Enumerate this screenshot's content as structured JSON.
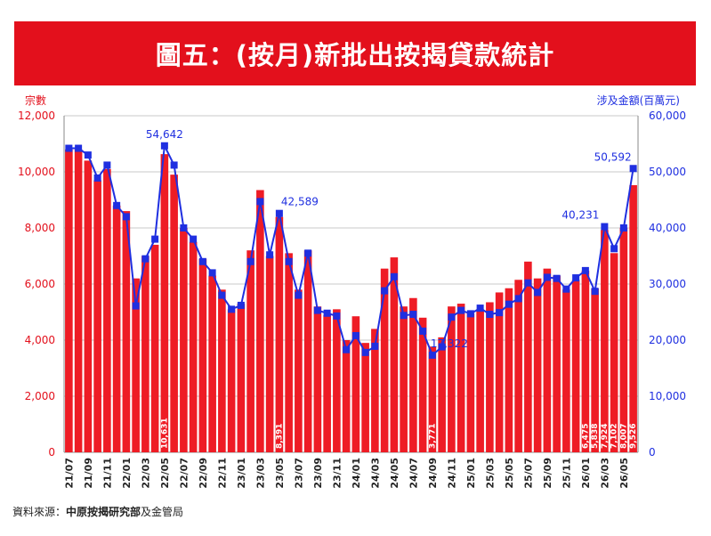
{
  "header": {
    "title": "圖五：(按月)新批出按揭貸款統計"
  },
  "source": {
    "prefix": "資料來源：",
    "org": "中原按揭研究部",
    "suffix": "及金管局"
  },
  "colors": {
    "banner": "#e3101c",
    "bar": "#ee1c25",
    "line": "#1f2fe0",
    "left_axis": "#e3101c",
    "right_axis": "#1f2fe0"
  },
  "chart_data": {
    "type": "bar",
    "left_axis_label": "宗數",
    "right_axis_label": "涉及金額(百萬元)",
    "left_ylim": [
      0,
      12000
    ],
    "right_ylim": [
      0,
      60000
    ],
    "left_ticks": [
      "0",
      "2,000",
      "4,000",
      "6,000",
      "8,000",
      "10,000",
      "12,000"
    ],
    "right_ticks": [
      "0",
      "10,000",
      "20,000",
      "30,000",
      "40,000",
      "50,000",
      "60,000"
    ],
    "grid": true,
    "categories": [
      "21/07",
      "21/08",
      "21/09",
      "21/10",
      "21/11",
      "21/12",
      "22/01",
      "22/02",
      "22/03",
      "22/04",
      "22/05",
      "22/06",
      "22/07",
      "22/08",
      "22/09",
      "22/10",
      "22/11",
      "22/12",
      "23/01",
      "23/02",
      "23/03",
      "23/04",
      "23/05",
      "23/06",
      "23/07",
      "23/08",
      "23/09",
      "23/10",
      "23/11",
      "23/12",
      "24/01",
      "24/02",
      "24/03",
      "24/04",
      "24/05",
      "24/06",
      "24/07",
      "24/08",
      "24/09",
      "24/10",
      "24/11",
      "24/12",
      "25/01",
      "25/02",
      "25/03",
      "25/04",
      "25/05",
      "25/06",
      "25/07",
      "25/08",
      "25/09",
      "25/10",
      "25/11",
      "25/12",
      "26/01",
      "26/02",
      "26/03",
      "26/04",
      "26/05",
      "26/06"
    ],
    "x_tick_labels": [
      "21/07",
      "21/09",
      "21/11",
      "22/01",
      "22/03",
      "22/05",
      "22/07",
      "22/09",
      "22/11",
      "23/01",
      "23/03",
      "23/05",
      "23/07",
      "23/09",
      "23/11",
      "24/01",
      "24/03",
      "24/05",
      "24/07",
      "24/09",
      "24/11",
      "25/01",
      "25/03",
      "25/05",
      "25/07",
      "25/09",
      "25/11",
      "26/01",
      "26/03",
      "26/05"
    ],
    "series": [
      {
        "name": "宗數",
        "type": "bar",
        "values": [
          10800,
          10800,
          10400,
          9700,
          10100,
          8800,
          8600,
          6200,
          7000,
          7400,
          10631,
          9900,
          8000,
          7500,
          6900,
          6300,
          5800,
          5100,
          5300,
          7200,
          9350,
          7000,
          8391,
          7100,
          5800,
          7200,
          5200,
          4900,
          5100,
          4000,
          4850,
          3900,
          4400,
          6550,
          6950,
          5200,
          5500,
          4800,
          3771,
          4100,
          5200,
          5300,
          4950,
          5100,
          5350,
          5700,
          5850,
          6150,
          6800,
          6200,
          6550,
          6300,
          5800,
          6150,
          6475,
          5838,
          7924,
          7102,
          8007,
          9526
        ]
      },
      {
        "name": "涉及金額",
        "type": "line",
        "values": [
          54200,
          54200,
          53000,
          48900,
          51200,
          44000,
          42000,
          26100,
          34500,
          38000,
          54642,
          51200,
          40000,
          38000,
          34000,
          32000,
          28000,
          25500,
          26200,
          34000,
          44700,
          35200,
          42589,
          34000,
          28000,
          35500,
          25300,
          24800,
          24300,
          18300,
          20800,
          17800,
          18900,
          28800,
          31300,
          24400,
          24600,
          21600,
          17322,
          18800,
          24100,
          25300,
          24700,
          25700,
          24600,
          24900,
          26400,
          27400,
          30200,
          28500,
          31200,
          31000,
          29100,
          31100,
          32400,
          28700,
          40231,
          36300,
          40000,
          50592
        ]
      }
    ],
    "line_annotations": [
      {
        "index": 10,
        "text": "54,642"
      },
      {
        "index": 22,
        "text": "42,589"
      },
      {
        "index": 38,
        "text": "17,322"
      },
      {
        "index": 56,
        "text": "40,231"
      },
      {
        "index": 59,
        "text": "50,592"
      }
    ],
    "bar_labels": [
      {
        "index": 10,
        "text": "10,631"
      },
      {
        "index": 22,
        "text": "8,391"
      },
      {
        "index": 38,
        "text": "3,771"
      },
      {
        "index": 54,
        "text": "6,475"
      },
      {
        "index": 55,
        "text": "5,838"
      },
      {
        "index": 56,
        "text": "7,924"
      },
      {
        "index": 57,
        "text": "7,102"
      },
      {
        "index": 58,
        "text": "8,007"
      },
      {
        "index": 59,
        "text": "9,526"
      }
    ]
  }
}
